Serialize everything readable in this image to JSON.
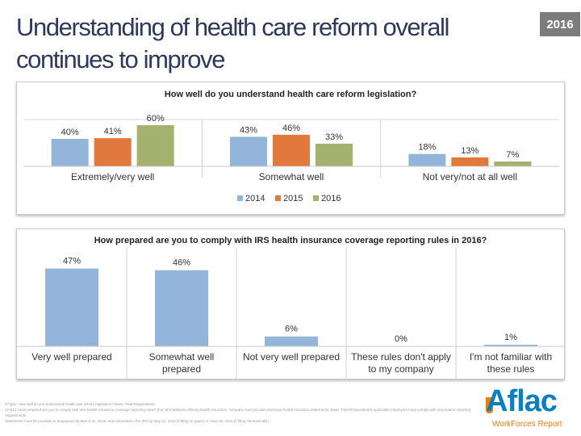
{
  "header": {
    "title": "Understanding of health care reform overall continues to improve",
    "year_badge": "2016"
  },
  "colors": {
    "2014": "#92b5d9",
    "2015": "#e2793c",
    "2016": "#a4b16f",
    "bar2": "#92b5d9",
    "title": "#2e3a5c"
  },
  "chart_data": [
    {
      "type": "bar",
      "title": "How well do you understand health care reform legislation?",
      "categories": [
        "Extremely/very well",
        "Somewhat well",
        "Not very/not at all well"
      ],
      "series": [
        {
          "name": "2014",
          "values": [
            40,
            43,
            18
          ],
          "labels": [
            "40%",
            "43%",
            "18%"
          ]
        },
        {
          "name": "2015",
          "values": [
            41,
            46,
            13
          ],
          "labels": [
            "41%",
            "46%",
            "13%"
          ]
        },
        {
          "name": "2016",
          "values": [
            60,
            33,
            7
          ],
          "labels": [
            "60%",
            "33%",
            "7%"
          ]
        }
      ],
      "legend_position": "bottom",
      "ylim": [
        0,
        100
      ]
    },
    {
      "type": "bar",
      "title": "How prepared are you to comply with IRS health insurance coverage reporting rules in 2016?",
      "categories": [
        [
          "Very well prepared"
        ],
        [
          "Somewhat well",
          "prepared"
        ],
        [
          "Not very well prepared"
        ],
        [
          "These rules don't apply",
          "to my company"
        ],
        [
          "I'm not familiar with",
          "these rules"
        ]
      ],
      "values": [
        47,
        46,
        6,
        0,
        1
      ],
      "labels": [
        "47%",
        "46%",
        "6%",
        "0%",
        "1%"
      ],
      "ylim": [
        0,
        60
      ]
    }
  ],
  "footnote": {
    "line1": "CFQ11: How well do you understand health care reform legislation? Base: Total Respondents",
    "line2": "CFQ12: How prepared are you to comply with new health insurance coverage reporting rules? (For all employers offering health insurance, company must provide employee health insurance statements; Base: Total Respondents) Applicable employers must comply with information reporting requirements.",
    "line3": "Statements must be provided to employees by March 31, 2016, and submitted to the IRS by May 31, 2016 (if filing on paper) or June 30, 2016 (if filing electronically)."
  },
  "logo": {
    "name": "Aflac",
    "subtitle": "WorkForces Report"
  }
}
